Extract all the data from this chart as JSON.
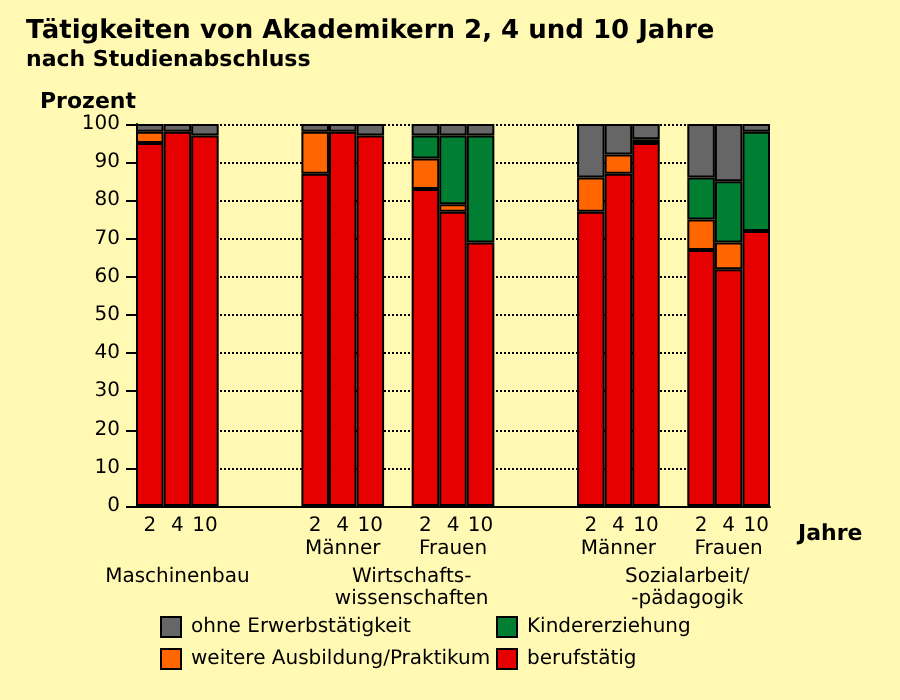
{
  "chart_data": {
    "type": "bar",
    "title": "Tätigkeiten von Akademikern 2, 4 und 10 Jahre",
    "subtitle": "nach Studienabschluss",
    "ylabel": "Prozent",
    "xlabel": "Jahre",
    "categories": [
      "2",
      "4",
      "10",
      null,
      null,
      null,
      "2",
      "4",
      "10",
      null,
      "2",
      "4",
      "10",
      null,
      null,
      null,
      "2",
      "4",
      "10",
      null,
      "2",
      "4",
      "10"
    ],
    "stacked": true,
    "series": [
      {
        "name": "berufstätig",
        "color": "#e60000",
        "values": [
          95,
          98,
          97,
          null,
          null,
          null,
          87,
          98,
          97,
          null,
          83,
          77,
          69,
          null,
          null,
          null,
          77,
          87,
          95,
          null,
          67,
          62,
          72
        ]
      },
      {
        "name": "weitere Ausbildung/Praktikum",
        "color": "#ff6600",
        "values": [
          3,
          0,
          0,
          null,
          null,
          null,
          11,
          0,
          0,
          null,
          8,
          2,
          0,
          null,
          null,
          null,
          9,
          5,
          0,
          null,
          8,
          7,
          0
        ]
      },
      {
        "name": "Kindererziehung",
        "color": "#007f33",
        "values": [
          0,
          0,
          0,
          null,
          null,
          null,
          0,
          0,
          0,
          null,
          6,
          18,
          28,
          null,
          null,
          null,
          0,
          0,
          1,
          null,
          11,
          16,
          26
        ]
      },
      {
        "name": "ohne Erwerbstätigkeit",
        "color": "#666666",
        "values": [
          2,
          2,
          3,
          null,
          null,
          null,
          2,
          2,
          3,
          null,
          3,
          3,
          3,
          null,
          null,
          null,
          14,
          8,
          4,
          null,
          14,
          15,
          2
        ]
      }
    ],
    "ylim": [
      0,
      100
    ],
    "yticks": [
      0,
      10,
      20,
      30,
      40,
      50,
      60,
      70,
      80,
      90,
      100
    ],
    "grid": "y",
    "legend": "bottom",
    "annotations": [
      "Männer",
      "Frauen",
      "Männer",
      "Frauen",
      "Maschinenbau",
      "Wirtschafts-\nwissenschaften",
      "Sozialarbeit/\n-pädagogik"
    ]
  }
}
